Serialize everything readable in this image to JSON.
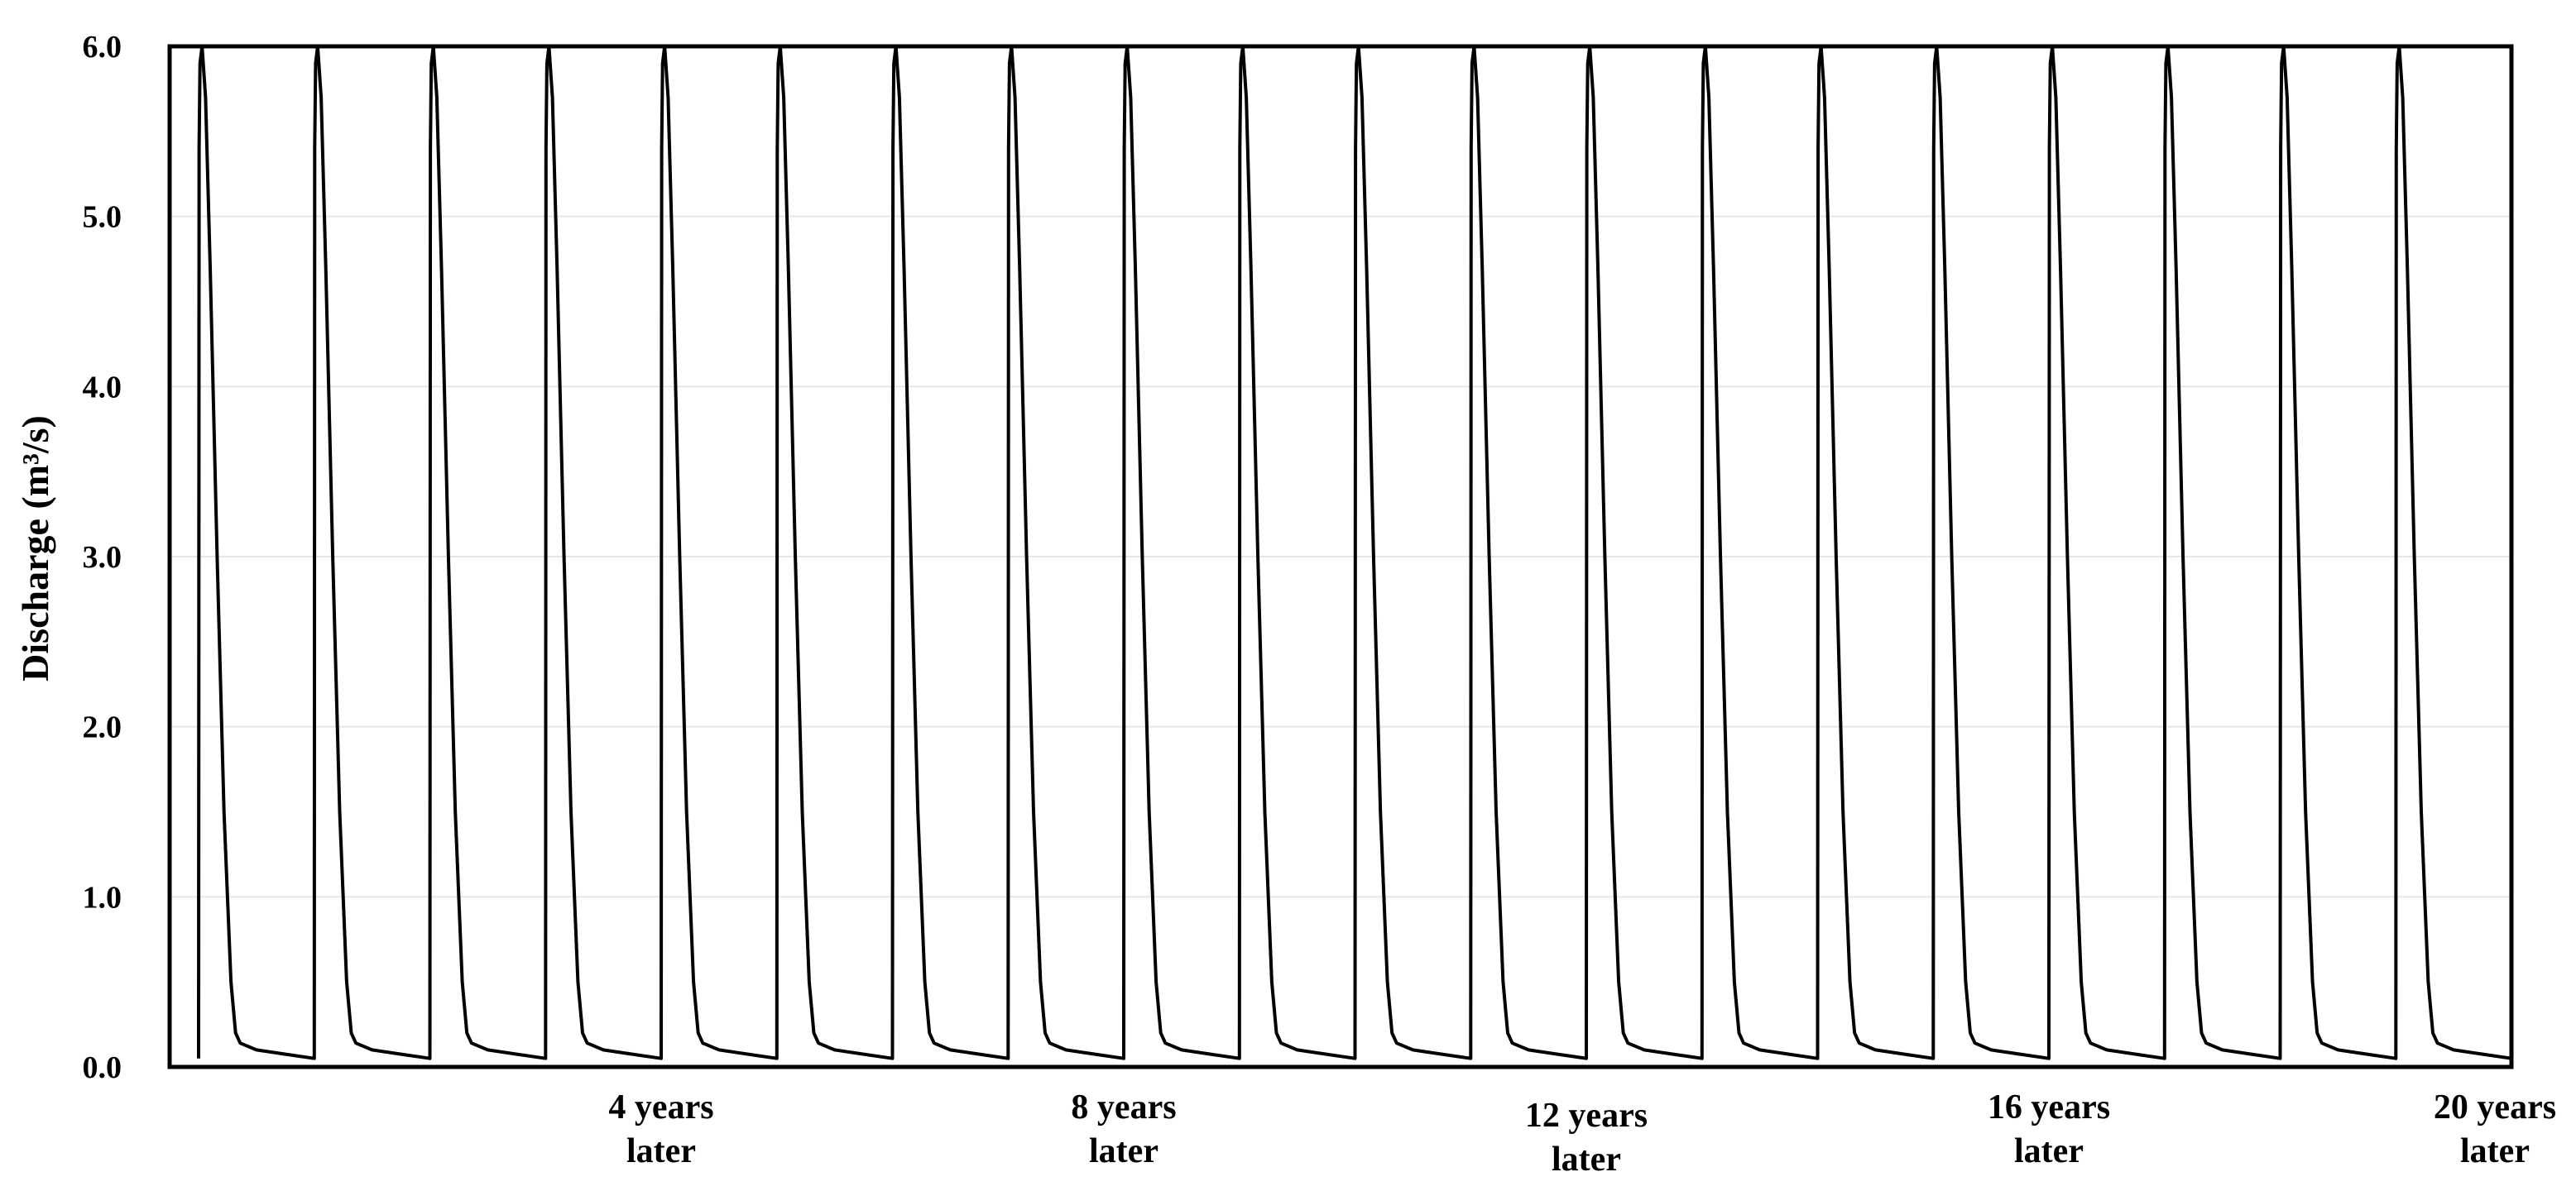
{
  "chart_data": {
    "type": "line",
    "title": "",
    "ylabel": "Discharge (m³/s)",
    "xlabel": "",
    "ylim": [
      0,
      6
    ],
    "yticks": [
      "0.0",
      "1.0",
      "2.0",
      "3.0",
      "4.0",
      "5.0",
      "6.0"
    ],
    "grid": true,
    "legend": "none",
    "line_color": "#000000",
    "x_unit": "years",
    "xlim": [
      0,
      20
    ],
    "x_category_labels": [
      {
        "x": 4,
        "line1": "4 years",
        "line2": "later"
      },
      {
        "x": 8,
        "line1": "8 years",
        "line2": "later"
      },
      {
        "x": 12,
        "line1": "12 years",
        "line2": "later"
      },
      {
        "x": 16,
        "line1": "16 years",
        "line2": "later"
      },
      {
        "x": 20,
        "line1": "20 years",
        "line2": "later"
      }
    ],
    "series": [
      {
        "cycles": 20,
        "cycle_shape": [
          {
            "t": 0.0,
            "q": 0.05
          },
          {
            "t": 0.004,
            "q": 5.4
          },
          {
            "t": 0.012,
            "q": 5.9
          },
          {
            "t": 0.03,
            "q": 6.0
          },
          {
            "t": 0.06,
            "q": 5.7
          },
          {
            "t": 0.1,
            "q": 4.7
          },
          {
            "t": 0.16,
            "q": 3.0
          },
          {
            "t": 0.22,
            "q": 1.5
          },
          {
            "t": 0.28,
            "q": 0.5
          },
          {
            "t": 0.32,
            "q": 0.2
          },
          {
            "t": 0.36,
            "q": 0.14
          },
          {
            "t": 0.5,
            "q": 0.1
          },
          {
            "t": 0.8,
            "q": 0.07
          },
          {
            "t": 1.0,
            "q": 0.05
          }
        ]
      }
    ]
  }
}
